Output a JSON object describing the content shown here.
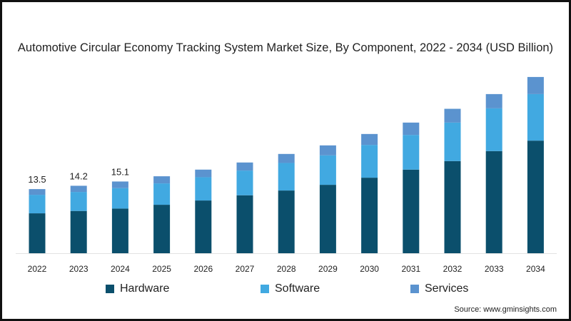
{
  "chart_data": {
    "type": "bar",
    "stacked": true,
    "title": "Automotive Circular Economy Tracking System Market Size, By Component, 2022 - 2034 (USD Billion)",
    "xlabel": "",
    "ylabel": "",
    "ylim": [
      0,
      40
    ],
    "grid": false,
    "legend_position": "bottom",
    "categories": [
      "2022",
      "2023",
      "2024",
      "2025",
      "2026",
      "2027",
      "2028",
      "2029",
      "2030",
      "2031",
      "2032",
      "2033",
      "2034"
    ],
    "series": [
      {
        "name": "Hardware",
        "color": "#0b4f6c",
        "values": [
          8.4,
          8.9,
          9.4,
          10.2,
          11.1,
          12.2,
          13.2,
          14.4,
          15.9,
          17.6,
          19.4,
          21.5,
          23.7
        ]
      },
      {
        "name": "Software",
        "color": "#41a9e1",
        "values": [
          3.9,
          4.0,
          4.3,
          4.5,
          4.9,
          5.2,
          5.8,
          6.2,
          6.9,
          7.3,
          8.1,
          9.0,
          9.8
        ]
      },
      {
        "name": "Services",
        "color": "#5b93cf",
        "values": [
          1.2,
          1.3,
          1.4,
          1.5,
          1.6,
          1.7,
          1.9,
          2.1,
          2.3,
          2.6,
          2.9,
          3.0,
          3.6
        ]
      }
    ],
    "data_labels": [
      {
        "category": "2022",
        "text": "13.5"
      },
      {
        "category": "2023",
        "text": "14.2"
      },
      {
        "category": "2024",
        "text": "15.1"
      }
    ]
  },
  "source": "Source: www.gminsights.com"
}
